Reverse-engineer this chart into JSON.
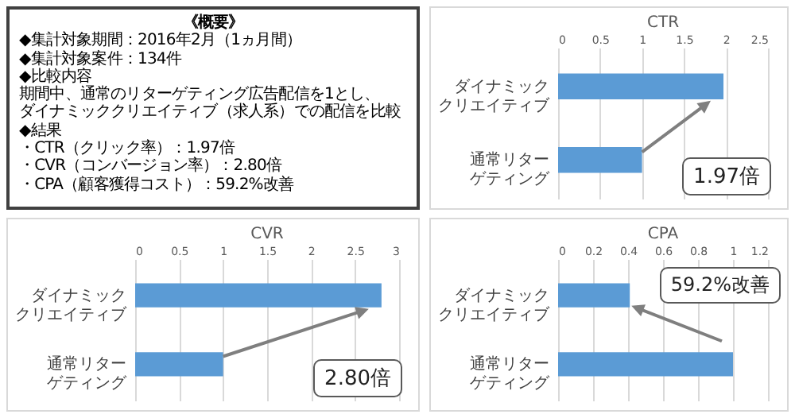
{
  "chart_data": [
    {
      "type": "other",
      "title": "《概要》",
      "annotations": [
        "◆集計対象期間：2016年2月（1ヵ月間）",
        "◆集計対象案件：134件",
        "◆比較内容",
        "期間中、通常のリターゲティング広告配信を1とし、",
        "ダイナミッククリエイティブ（求人系）での配信を比較",
        "◆結果",
        "・CTR（クリック率）：1.97倍",
        "・CVR（コンバージョン率）：2.80倍",
        "・CPA（顧客獲得コスト）：59.2%改善"
      ]
    },
    {
      "type": "bar",
      "orientation": "horizontal",
      "title": "CTR",
      "categories": [
        "ダイナミッククリエイティブ",
        "通常リターゲティング"
      ],
      "values": [
        1.97,
        1
      ],
      "color": "#5b9bd5",
      "xlim": [
        0,
        2.5
      ],
      "xticks": [
        0,
        0.5,
        1,
        1.5,
        2,
        2.5
      ],
      "grid": "x",
      "annotations": [
        "1.97倍"
      ]
    },
    {
      "type": "bar",
      "orientation": "horizontal",
      "title": "CVR",
      "categories": [
        "ダイナミッククリエイティブ",
        "通常リターゲティング"
      ],
      "values": [
        2.8,
        1
      ],
      "color": "#5b9bd5",
      "xlim": [
        0,
        3
      ],
      "xticks": [
        0,
        0.5,
        1,
        1.5,
        2,
        2.5,
        3
      ],
      "grid": "x",
      "annotations": [
        "2.80倍"
      ]
    },
    {
      "type": "bar",
      "orientation": "horizontal",
      "title": "CPA",
      "categories": [
        "ダイナミッククリエイティブ",
        "通常リターゲティング"
      ],
      "values": [
        0.41,
        1
      ],
      "color": "#5b9bd5",
      "xlim": [
        0,
        1.2
      ],
      "xticks": [
        0,
        0.2,
        0.4,
        0.6,
        0.8,
        1,
        1.2
      ],
      "grid": "x",
      "annotations": [
        "59.2%改善"
      ]
    }
  ]
}
